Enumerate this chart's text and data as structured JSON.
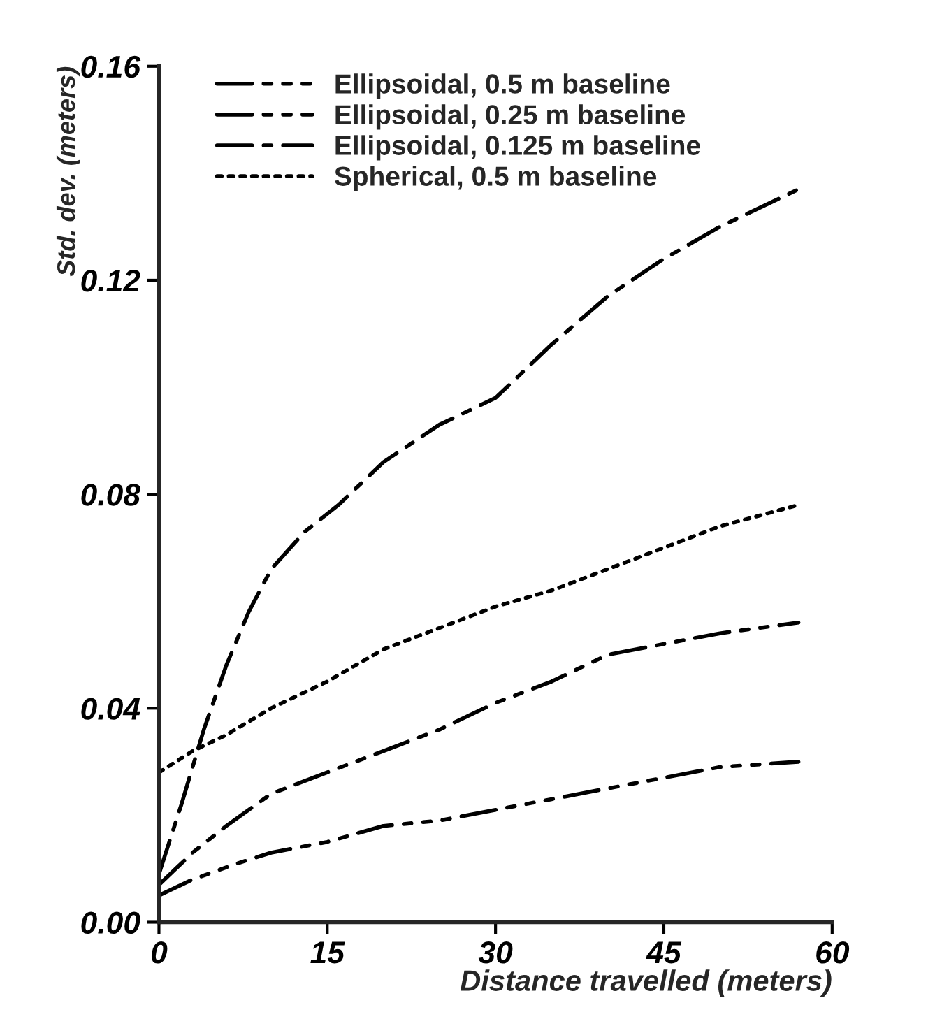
{
  "chart_data": {
    "type": "line",
    "xlabel": "Distance travelled (meters)",
    "ylabel": "Std. dev. (meters)",
    "xlim": [
      0,
      60
    ],
    "ylim": [
      0,
      0.16
    ],
    "xticks": [
      0,
      15,
      30,
      45,
      60
    ],
    "yticks": [
      {
        "value": 0,
        "label": "0.00"
      },
      {
        "value": 0.04,
        "label": "0.04"
      },
      {
        "value": 0.08,
        "label": "0.08"
      },
      {
        "value": 0.12,
        "label": "0.12"
      },
      {
        "value": 0.16,
        "label": "0.16"
      }
    ],
    "grid": false,
    "legend": "top left",
    "series": [
      {
        "name": "Ellipsoidal, 0.5 m baseline",
        "color": "#000000",
        "line_style": "dashdotdotdot",
        "x": [
          0,
          3,
          7,
          10,
          15,
          20,
          25,
          30,
          35,
          40,
          45,
          50,
          57
        ],
        "values": [
          0.005,
          0.008,
          0.011,
          0.013,
          0.015,
          0.018,
          0.019,
          0.021,
          0.023,
          0.025,
          0.027,
          0.029,
          0.03
        ]
      },
      {
        "name": "Ellipsoidal, 0.25 m baseline",
        "color": "#000000",
        "line_style": "dashdotdot",
        "x": [
          0,
          3,
          6,
          10,
          15,
          20,
          25,
          30,
          35,
          40,
          45,
          50,
          57
        ],
        "values": [
          0.007,
          0.013,
          0.018,
          0.024,
          0.028,
          0.032,
          0.036,
          0.041,
          0.045,
          0.05,
          0.052,
          0.054,
          0.056
        ]
      },
      {
        "name": "Ellipsoidal, 0.125 m baseline",
        "color": "#000000",
        "line_style": "dashdot",
        "x": [
          0,
          2,
          4,
          6,
          8,
          10,
          13,
          16,
          20,
          25,
          30,
          35,
          40,
          45,
          50,
          57
        ],
        "values": [
          0.009,
          0.022,
          0.036,
          0.048,
          0.058,
          0.066,
          0.073,
          0.078,
          0.086,
          0.093,
          0.098,
          0.108,
          0.117,
          0.124,
          0.13,
          0.137
        ]
      },
      {
        "name": "Spherical, 0.5 m baseline",
        "color": "#000000",
        "line_style": "dotted",
        "x": [
          0,
          3,
          6,
          10,
          15,
          20,
          25,
          30,
          35,
          40,
          45,
          50,
          57
        ],
        "values": [
          0.028,
          0.032,
          0.035,
          0.04,
          0.045,
          0.051,
          0.055,
          0.059,
          0.062,
          0.066,
          0.07,
          0.074,
          0.078
        ]
      }
    ]
  }
}
